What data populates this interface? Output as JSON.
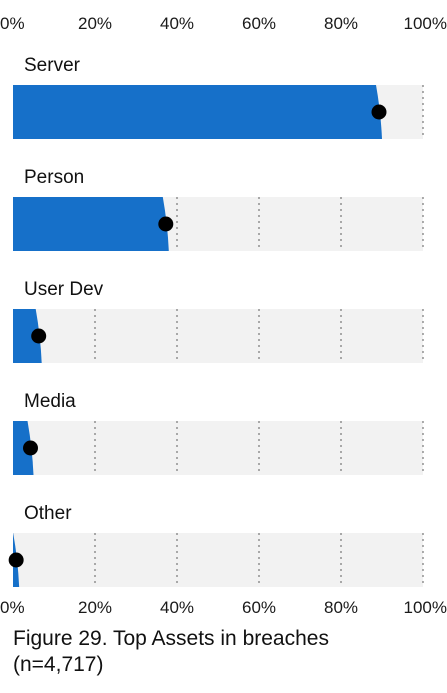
{
  "caption": {
    "line1": "Figure 29. Top Assets in breaches",
    "line2": "(n=4,717)"
  },
  "colors": {
    "bar": "#1670c9",
    "track": "#f2f2f2",
    "dot": "#000000",
    "grid": "#777777"
  },
  "chart_data": {
    "type": "bar",
    "orientation": "horizontal",
    "title": "Figure 29. Top Assets in breaches (n=4,717)",
    "categories": [
      "Server",
      "Person",
      "User Dev",
      "Media",
      "Other"
    ],
    "values": [
      90,
      38,
      7,
      5,
      1.5
    ],
    "unit": "%",
    "xlim": [
      0,
      100
    ],
    "x_ticks": [
      "0%",
      "20%",
      "40%",
      "60%",
      "80%",
      "100%"
    ],
    "x_tick_values": [
      0,
      20,
      40,
      60,
      80,
      100
    ],
    "tick_labels_position": "top and bottom",
    "grid": true,
    "grid_style": "dotted vertical",
    "marker": "dot at value"
  }
}
